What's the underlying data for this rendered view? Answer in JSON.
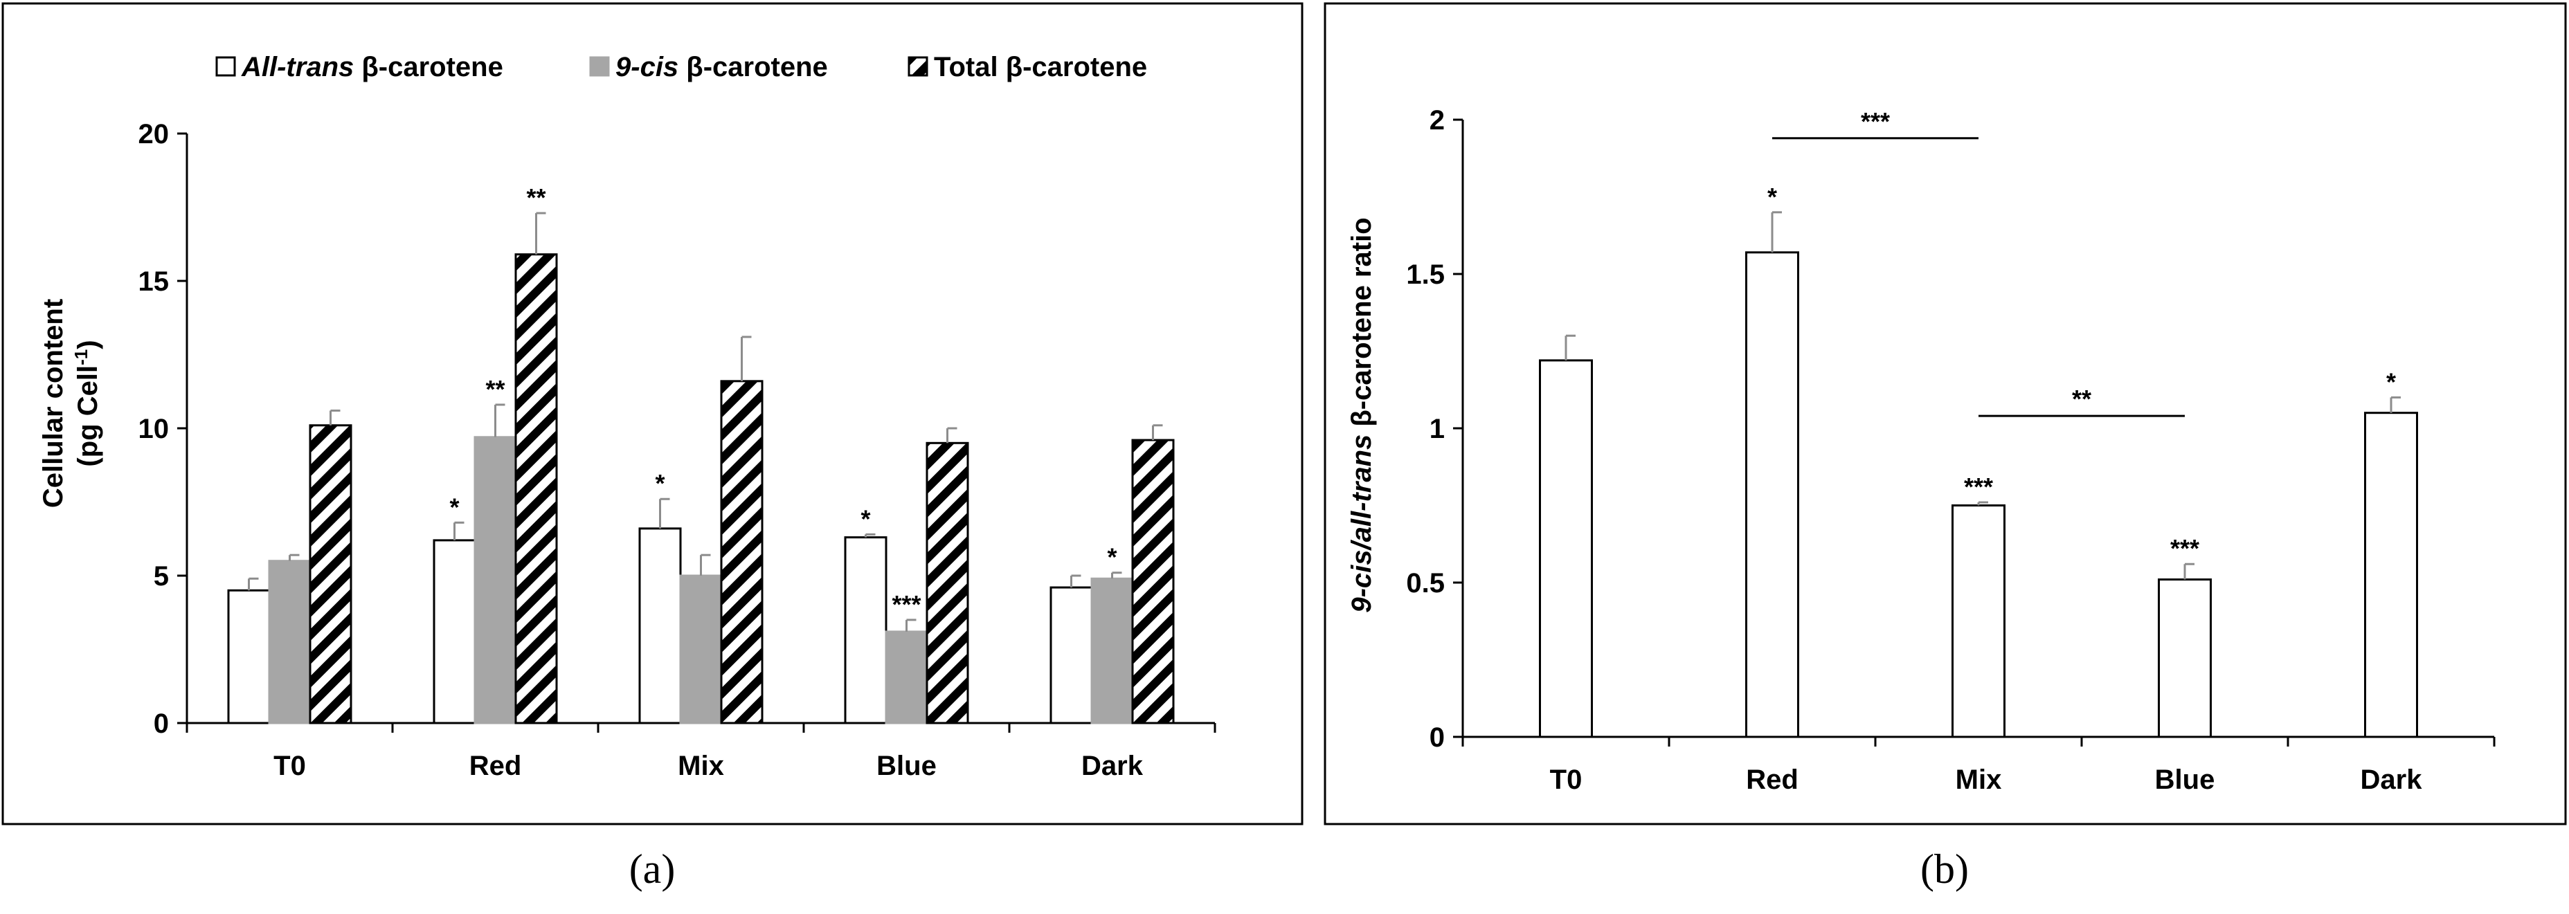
{
  "chart_data": [
    {
      "type": "bar",
      "panel_label": "(a)",
      "categories": [
        "T0",
        "Red",
        "Mix",
        "Blue",
        "Dark"
      ],
      "ylabel_line1": "Cellular content",
      "ylabel_line2": "(pg Cell",
      "ylabel_sup": "-1",
      "ylabel_close": ")",
      "ylim": [
        0,
        20
      ],
      "yticks": [
        0,
        5,
        10,
        15,
        20
      ],
      "legend": [
        {
          "prefix": "All-trans",
          "suffix": " β-carotene"
        },
        {
          "prefix": "9-cis",
          "suffix": " β-carotene"
        },
        {
          "prefix": "",
          "suffix": "Total β-carotene"
        }
      ],
      "series": [
        {
          "name": "All-trans β-carotene",
          "color": "#ffffff",
          "values": [
            4.5,
            6.2,
            6.6,
            6.3,
            4.6
          ],
          "errors": [
            0.4,
            0.6,
            1.0,
            0.1,
            0.4
          ],
          "stars": [
            "",
            "*",
            "*",
            "*",
            ""
          ]
        },
        {
          "name": "9-cis β-carotene",
          "color": "#a6a6a6",
          "values": [
            5.5,
            9.7,
            5.0,
            3.1,
            4.9
          ],
          "errors": [
            0.2,
            1.1,
            0.7,
            0.4,
            0.2
          ],
          "stars": [
            "",
            "**",
            "",
            "***",
            "*"
          ]
        },
        {
          "name": "Total β-carotene",
          "color": "hatched",
          "values": [
            10.1,
            15.9,
            11.6,
            9.5,
            9.6
          ],
          "errors": [
            0.5,
            1.4,
            1.5,
            0.5,
            0.5
          ],
          "stars": [
            "",
            "**",
            "",
            "",
            ""
          ]
        }
      ]
    },
    {
      "type": "bar",
      "panel_label": "(b)",
      "categories": [
        "T0",
        "Red",
        "Mix",
        "Blue",
        "Dark"
      ],
      "ylabel_prefix": "9-cis/all-trans",
      "ylabel_suffix": " β-carotene ratio",
      "ylim": [
        0,
        2
      ],
      "yticks": [
        0,
        0.5,
        1,
        1.5,
        2
      ],
      "series": [
        {
          "name": "9-cis/all-trans β-carotene ratio",
          "color": "#ffffff",
          "values": [
            1.22,
            1.57,
            0.75,
            0.51,
            1.05
          ],
          "errors": [
            0.08,
            0.13,
            0.01,
            0.05,
            0.05
          ],
          "stars": [
            "",
            "*",
            "***",
            "***",
            "*"
          ]
        }
      ],
      "comparisons": [
        {
          "from": "Red",
          "to": "Mix",
          "label": "***"
        },
        {
          "from": "Mix",
          "to": "Blue",
          "label": "**"
        }
      ]
    }
  ]
}
